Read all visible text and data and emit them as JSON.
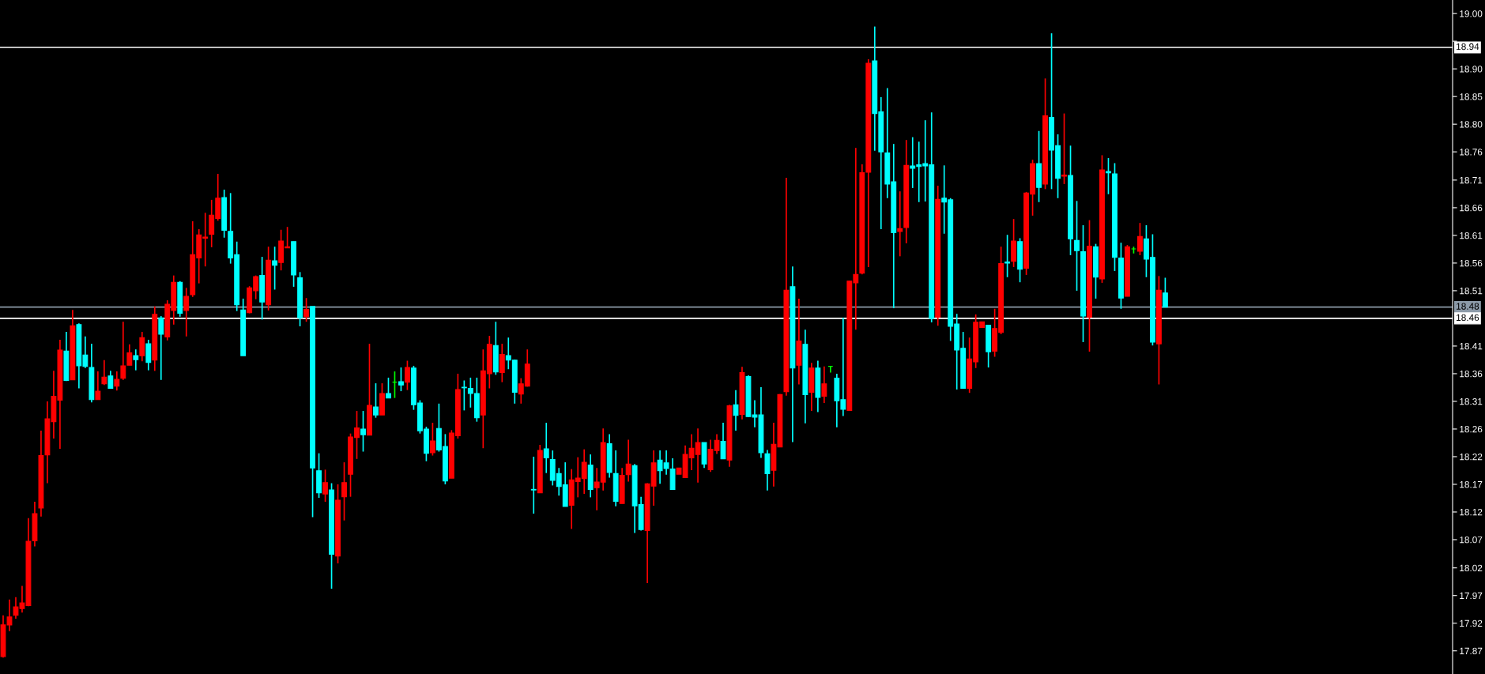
{
  "chart_data": {
    "type": "candlestick",
    "categories": [
      null,
      null,
      null,
      null,
      null,
      null,
      null,
      null,
      null,
      null,
      null,
      null,
      null,
      null,
      null,
      null,
      null,
      null,
      null,
      null,
      null,
      null,
      null,
      null,
      null,
      null,
      null,
      null,
      null,
      null,
      null,
      null,
      null,
      null,
      null,
      null,
      null,
      null,
      null,
      null,
      null,
      null,
      null,
      null,
      null,
      null,
      null,
      null,
      null,
      null,
      null,
      null,
      null,
      null,
      null,
      null,
      null,
      null,
      null,
      null,
      null,
      null,
      null,
      null,
      null,
      null,
      null,
      null,
      null,
      null,
      null,
      null,
      null,
      null,
      null,
      null,
      null,
      null,
      null,
      null,
      null,
      null,
      null,
      null,
      null,
      null,
      null,
      null,
      null,
      null,
      null,
      null,
      null,
      null,
      null,
      null,
      null,
      null,
      null,
      null,
      null,
      null,
      null,
      null,
      null,
      null,
      null,
      null,
      null,
      null,
      null,
      null,
      null,
      null,
      null,
      null,
      null,
      null,
      null,
      null,
      null,
      null,
      null,
      null,
      null,
      null,
      null,
      null,
      null,
      null,
      null,
      null,
      null,
      null,
      null,
      null,
      null,
      null,
      null,
      null,
      null,
      null,
      null,
      null,
      null,
      null,
      null,
      null,
      null,
      null,
      null,
      null,
      null,
      null,
      null,
      null,
      null,
      null,
      null,
      null,
      null,
      null,
      null,
      null,
      null,
      null,
      null,
      null,
      null,
      null,
      null,
      null,
      null,
      null,
      null,
      null,
      null,
      null,
      null,
      null,
      null,
      null,
      null,
      null,
      null,
      null,
      null,
      null,
      null,
      null,
      null,
      null,
      null,
      null,
      null,
      null,
      null,
      null,
      null,
      null,
      null,
      null,
      null,
      null,
      null,
      null,
      null,
      null,
      null,
      null,
      null,
      null,
      null,
      null,
      null,
      null,
      null,
      null,
      null,
      null,
      null,
      null,
      null,
      null,
      null,
      null,
      null,
      null,
      null,
      null
    ],
    "ohlc": [
      [
        17.861,
        17.934,
        17.859,
        17.917
      ],
      [
        17.917,
        17.962,
        17.906,
        17.931
      ],
      [
        17.934,
        17.966,
        17.928,
        17.949
      ],
      [
        17.946,
        17.986,
        17.939,
        17.956
      ],
      [
        17.951,
        18.106,
        17.95,
        18.065
      ],
      [
        18.066,
        18.135,
        18.056,
        18.114
      ],
      [
        18.124,
        18.261,
        18.109,
        18.217
      ],
      [
        18.218,
        18.313,
        18.168,
        18.282
      ],
      [
        18.277,
        18.367,
        18.247,
        18.322
      ],
      [
        18.315,
        18.422,
        18.229,
        18.404
      ],
      [
        18.402,
        18.436,
        18.349,
        18.35
      ],
      [
        18.351,
        18.475,
        18.351,
        18.447
      ],
      [
        18.449,
        18.451,
        18.336,
        18.376
      ],
      [
        18.395,
        18.428,
        18.372,
        18.375
      ],
      [
        18.373,
        18.415,
        18.311,
        18.316
      ],
      [
        18.316,
        18.366,
        18.316,
        18.331
      ],
      [
        18.344,
        18.386,
        18.342,
        18.356
      ],
      [
        18.358,
        18.367,
        18.336,
        18.336
      ],
      [
        18.34,
        18.366,
        18.332,
        18.352
      ],
      [
        18.354,
        18.454,
        18.351,
        18.376
      ],
      [
        18.377,
        18.414,
        18.377,
        18.399
      ],
      [
        18.394,
        18.405,
        18.368,
        18.387
      ],
      [
        18.394,
        18.436,
        18.384,
        18.426
      ],
      [
        18.415,
        18.422,
        18.368,
        18.382
      ],
      [
        18.386,
        18.481,
        18.367,
        18.467
      ],
      [
        18.461,
        18.464,
        18.351,
        18.432
      ],
      [
        18.427,
        18.492,
        18.421,
        18.485
      ],
      [
        18.474,
        18.536,
        18.449,
        18.524
      ],
      [
        18.524,
        18.526,
        18.463,
        18.469
      ],
      [
        18.474,
        18.514,
        18.428,
        18.499
      ],
      [
        18.502,
        18.632,
        18.498,
        18.573
      ],
      [
        18.567,
        18.618,
        18.522,
        18.608
      ],
      [
        18.602,
        18.647,
        18.552,
        18.604
      ],
      [
        18.609,
        18.67,
        18.586,
        18.643
      ],
      [
        18.637,
        18.716,
        18.633,
        18.673
      ],
      [
        18.674,
        18.688,
        18.603,
        18.616
      ],
      [
        18.614,
        18.682,
        18.557,
        18.567
      ],
      [
        18.573,
        18.596,
        18.473,
        18.484
      ],
      [
        18.475,
        18.495,
        18.394,
        18.394
      ],
      [
        18.47,
        18.517,
        18.469,
        18.514
      ],
      [
        18.509,
        18.536,
        18.494,
        18.534
      ],
      [
        18.536,
        18.569,
        18.458,
        18.489
      ],
      [
        18.484,
        18.587,
        18.474,
        18.563
      ],
      [
        18.562,
        18.587,
        18.511,
        18.554
      ],
      [
        18.559,
        18.617,
        18.545,
        18.597
      ],
      [
        18.585,
        18.622,
        18.585,
        18.587
      ],
      [
        18.596,
        18.596,
        18.516,
        18.537
      ],
      [
        18.532,
        18.542,
        18.446,
        18.461
      ],
      [
        18.463,
        18.496,
        18.454,
        18.476
      ],
      [
        18.481,
        18.481,
        18.108,
        18.195
      ],
      [
        18.19,
        18.221,
        18.142,
        18.151
      ],
      [
        18.149,
        18.192,
        18.135,
        18.169
      ],
      [
        18.156,
        18.168,
        17.981,
        18.042
      ],
      [
        18.039,
        18.166,
        18.026,
        18.138
      ],
      [
        18.144,
        18.205,
        18.102,
        18.169
      ],
      [
        18.184,
        18.256,
        18.144,
        18.25
      ],
      [
        18.249,
        18.296,
        18.211,
        18.266
      ],
      [
        18.264,
        18.296,
        18.224,
        18.254
      ],
      [
        18.253,
        18.415,
        18.253,
        18.306
      ],
      [
        18.303,
        18.345,
        18.284,
        18.289
      ],
      [
        18.289,
        18.345,
        18.289,
        18.327
      ],
      [
        18.327,
        18.355,
        18.319,
        18.319
      ],
      [
        18.347,
        18.366,
        18.319,
        18.347
      ],
      [
        18.348,
        18.373,
        18.331,
        18.342
      ],
      [
        18.347,
        18.385,
        18.333,
        18.373
      ],
      [
        18.372,
        18.376,
        18.298,
        18.307
      ],
      [
        18.31,
        18.315,
        18.256,
        18.261
      ],
      [
        18.264,
        18.268,
        18.207,
        18.221
      ],
      [
        18.222,
        18.275,
        18.217,
        18.243
      ],
      [
        18.265,
        18.309,
        18.224,
        18.227
      ],
      [
        18.233,
        18.255,
        18.166,
        18.172
      ],
      [
        18.177,
        18.262,
        18.177,
        18.257
      ],
      [
        18.252,
        18.362,
        18.247,
        18.334
      ],
      [
        18.338,
        18.35,
        18.297,
        18.337
      ],
      [
        18.336,
        18.355,
        18.302,
        18.327
      ],
      [
        18.327,
        18.355,
        18.277,
        18.284
      ],
      [
        18.289,
        18.405,
        18.23,
        18.367
      ],
      [
        18.362,
        18.429,
        18.336,
        18.414
      ],
      [
        18.412,
        18.454,
        18.36,
        18.365
      ],
      [
        18.364,
        18.415,
        18.347,
        18.396
      ],
      [
        18.394,
        18.426,
        18.37,
        18.386
      ],
      [
        18.386,
        18.387,
        18.309,
        18.329
      ],
      [
        18.326,
        18.354,
        18.309,
        18.344
      ],
      [
        18.34,
        18.405,
        18.339,
        18.379
      ],
      [
        18.157,
        18.215,
        18.114,
        18.156
      ],
      [
        18.151,
        18.236,
        18.151,
        18.226
      ],
      [
        18.229,
        18.275,
        18.186,
        18.213
      ],
      [
        18.21,
        18.226,
        18.164,
        18.173
      ],
      [
        18.185,
        18.195,
        18.146,
        18.162
      ],
      [
        18.165,
        18.205,
        18.127,
        18.127
      ],
      [
        18.129,
        18.193,
        18.087,
        18.174
      ],
      [
        18.171,
        18.214,
        18.143,
        18.177
      ],
      [
        18.176,
        18.228,
        18.149,
        18.205
      ],
      [
        18.2,
        18.219,
        18.143,
        18.157
      ],
      [
        18.16,
        18.195,
        18.12,
        18.17
      ],
      [
        18.17,
        18.265,
        18.155,
        18.24
      ],
      [
        18.238,
        18.255,
        18.178,
        18.187
      ],
      [
        18.185,
        18.226,
        18.127,
        18.136
      ],
      [
        18.132,
        18.195,
        18.132,
        18.182
      ],
      [
        18.183,
        18.245,
        18.171,
        18.202
      ],
      [
        18.199,
        18.202,
        18.08,
        18.128
      ],
      [
        18.13,
        18.144,
        18.084,
        18.086
      ],
      [
        18.084,
        18.168,
        17.991,
        18.167
      ],
      [
        18.163,
        18.226,
        18.128,
        18.204
      ],
      [
        18.209,
        18.226,
        18.167,
        18.19
      ],
      [
        18.204,
        18.226,
        18.183,
        18.194
      ],
      [
        18.193,
        18.212,
        18.156,
        18.157
      ],
      [
        18.184,
        18.195,
        18.184,
        18.195
      ],
      [
        18.178,
        18.235,
        18.178,
        18.219
      ],
      [
        18.213,
        18.255,
        18.191,
        18.23
      ],
      [
        18.219,
        18.265,
        18.169,
        18.24
      ],
      [
        18.24,
        18.24,
        18.195,
        18.202
      ],
      [
        18.192,
        18.245,
        18.188,
        18.228
      ],
      [
        18.226,
        18.255,
        18.22,
        18.244
      ],
      [
        18.242,
        18.275,
        18.211,
        18.211
      ],
      [
        18.209,
        18.307,
        18.197,
        18.305
      ],
      [
        18.307,
        18.333,
        18.261,
        18.288
      ],
      [
        18.29,
        18.374,
        18.281,
        18.364
      ],
      [
        18.357,
        18.359,
        18.285,
        18.286
      ],
      [
        18.289,
        18.315,
        18.267,
        18.285
      ],
      [
        18.289,
        18.338,
        18.213,
        18.222
      ],
      [
        18.22,
        18.227,
        18.155,
        18.185
      ],
      [
        18.191,
        18.275,
        18.162,
        18.237
      ],
      [
        18.232,
        18.326,
        18.232,
        18.325
      ],
      [
        18.33,
        18.709,
        18.323,
        18.51
      ],
      [
        18.516,
        18.552,
        18.241,
        18.372
      ],
      [
        18.377,
        18.495,
        18.343,
        18.42
      ],
      [
        18.414,
        18.44,
        18.274,
        18.325
      ],
      [
        18.329,
        18.381,
        18.296,
        18.372
      ],
      [
        18.372,
        18.385,
        18.294,
        18.32
      ],
      [
        18.322,
        18.375,
        18.31,
        18.344
      ],
      [
        18.375,
        18.375,
        18.364,
        18.375
      ],
      [
        18.354,
        18.362,
        18.267,
        18.314
      ],
      [
        18.316,
        18.461,
        18.287,
        18.299
      ],
      [
        18.297,
        18.526,
        18.297,
        18.526
      ],
      [
        18.523,
        18.762,
        18.44,
        18.538
      ],
      [
        18.54,
        18.733,
        18.538,
        18.718
      ],
      [
        18.719,
        18.919,
        18.551,
        18.912
      ],
      [
        18.916,
        18.977,
        18.757,
        18.823
      ],
      [
        18.826,
        18.852,
        18.618,
        18.755
      ],
      [
        18.753,
        18.868,
        18.673,
        18.698
      ],
      [
        18.702,
        18.769,
        18.478,
        18.612
      ],
      [
        18.614,
        18.685,
        18.57,
        18.619
      ],
      [
        18.621,
        18.776,
        18.593,
        18.731
      ],
      [
        18.73,
        18.781,
        18.691,
        18.726
      ],
      [
        18.732,
        18.773,
        18.666,
        18.729
      ],
      [
        18.734,
        18.811,
        18.667,
        18.73
      ],
      [
        18.732,
        18.825,
        18.453,
        18.46
      ],
      [
        18.462,
        18.695,
        18.447,
        18.671
      ],
      [
        18.673,
        18.731,
        18.61,
        18.666
      ],
      [
        18.67,
        18.673,
        18.42,
        18.446
      ],
      [
        18.45,
        18.468,
        18.334,
        18.404
      ],
      [
        18.407,
        18.436,
        18.336,
        18.336
      ],
      [
        18.336,
        18.426,
        18.328,
        18.388
      ],
      [
        18.383,
        18.467,
        18.372,
        18.453
      ],
      [
        18.444,
        18.454,
        18.444,
        18.454
      ],
      [
        18.448,
        18.448,
        18.373,
        18.401
      ],
      [
        18.402,
        18.477,
        18.392,
        18.442
      ],
      [
        18.435,
        18.587,
        18.432,
        18.557
      ],
      [
        18.56,
        18.608,
        18.533,
        18.558
      ],
      [
        18.561,
        18.636,
        18.551,
        18.597
      ],
      [
        18.596,
        18.602,
        18.524,
        18.547
      ],
      [
        18.549,
        18.684,
        18.537,
        18.682
      ],
      [
        18.68,
        18.741,
        18.642,
        18.734
      ],
      [
        18.734,
        18.792,
        18.666,
        18.692
      ],
      [
        18.698,
        18.885,
        18.689,
        18.819
      ],
      [
        18.816,
        18.965,
        18.689,
        18.758
      ],
      [
        18.766,
        18.786,
        18.673,
        18.708
      ],
      [
        18.712,
        18.823,
        18.698,
        18.714
      ],
      [
        18.713,
        18.766,
        18.572,
        18.601
      ],
      [
        18.598,
        18.668,
        18.509,
        18.58
      ],
      [
        18.578,
        18.625,
        18.418,
        18.464
      ],
      [
        18.462,
        18.634,
        18.401,
        18.588
      ],
      [
        18.587,
        18.592,
        18.495,
        18.533
      ],
      [
        18.53,
        18.749,
        18.523,
        18.723
      ],
      [
        18.72,
        18.744,
        18.68,
        18.718
      ],
      [
        18.716,
        18.735,
        18.544,
        18.568
      ],
      [
        18.567,
        18.594,
        18.477,
        18.496
      ],
      [
        18.499,
        18.59,
        18.499,
        18.587
      ],
      [
        18.583,
        18.587,
        18.575,
        18.583
      ],
      [
        18.579,
        18.629,
        18.572,
        18.605
      ],
      [
        18.601,
        18.625,
        18.533,
        18.565
      ],
      [
        18.568,
        18.609,
        18.412,
        18.418
      ],
      [
        18.415,
        18.535,
        18.343,
        18.51
      ],
      [
        18.505,
        18.532,
        18.48,
        18.48
      ],
      null,
      null,
      null,
      null,
      null,
      null,
      null,
      null,
      null,
      null,
      null,
      null,
      null,
      null,
      null,
      null,
      null,
      null,
      null,
      null,
      null,
      null,
      null,
      null,
      null,
      null,
      null,
      null,
      null,
      null,
      null,
      null,
      null,
      null,
      null,
      null,
      null,
      null,
      null,
      null,
      null,
      null,
      null,
      null,
      null
    ],
    "colors": [
      "#ff0000",
      "#ff0000",
      "#ff0000",
      "#ff0000",
      "#ff0000",
      "#ff0000",
      "#ff0000",
      "#ff0000",
      "#ff0000",
      "#ff0000",
      "#00ffff",
      "#ff0000",
      "#00ffff",
      "#00ffff",
      "#00ffff",
      "#ff0000",
      "#ff0000",
      "#00ffff",
      "#ff0000",
      "#ff0000",
      "#ff0000",
      "#00ffff",
      "#ff0000",
      "#00ffff",
      "#ff0000",
      "#00ffff",
      "#ff0000",
      "#ff0000",
      "#00ffff",
      "#ff0000",
      "#ff0000",
      "#ff0000",
      "#ff0000",
      "#ff0000",
      "#ff0000",
      "#00ffff",
      "#00ffff",
      "#00ffff",
      "#00ffff",
      "#ff0000",
      "#ff0000",
      "#00ffff",
      "#ff0000",
      "#00ffff",
      "#ff0000",
      "#ff0000",
      "#00ffff",
      "#00ffff",
      "#ff0000",
      "#00ffff",
      "#00ffff",
      "#ff0000",
      "#00ffff",
      "#ff0000",
      "#ff0000",
      "#ff0000",
      "#ff0000",
      "#00ffff",
      "#ff0000",
      "#00ffff",
      "#ff0000",
      "#00ffff",
      "#00ff00",
      "#00ffff",
      "#ff0000",
      "#00ffff",
      "#00ffff",
      "#00ffff",
      "#ff0000",
      "#00ffff",
      "#00ffff",
      "#ff0000",
      "#ff0000",
      "#00ffff",
      "#00ffff",
      "#00ffff",
      "#ff0000",
      "#ff0000",
      "#00ffff",
      "#ff0000",
      "#00ffff",
      "#00ffff",
      "#ff0000",
      "#ff0000",
      "#00ffff",
      "#ff0000",
      "#00ffff",
      "#00ffff",
      "#00ffff",
      "#00ffff",
      "#ff0000",
      "#ff0000",
      "#ff0000",
      "#00ffff",
      "#ff0000",
      "#ff0000",
      "#00ffff",
      "#00ffff",
      "#ff0000",
      "#ff0000",
      "#00ffff",
      "#00ffff",
      "#ff0000",
      "#ff0000",
      "#00ffff",
      "#00ffff",
      "#00ffff",
      "#ff0000",
      "#ff0000",
      "#ff0000",
      "#ff0000",
      "#00ffff",
      "#ff0000",
      "#ff0000",
      "#00ffff",
      "#ff0000",
      "#00ffff",
      "#ff0000",
      "#00ffff",
      "#00ffff",
      "#00ffff",
      "#00ffff",
      "#ff0000",
      "#ff0000",
      "#ff0000",
      "#00ffff",
      "#ff0000",
      "#00ffff",
      "#ff0000",
      "#00ffff",
      "#ff0000",
      "#00ff00",
      "#00ffff",
      "#00ffff",
      "#ff0000",
      "#ff0000",
      "#ff0000",
      "#ff0000",
      "#00ffff",
      "#00ffff",
      "#00ffff",
      "#00ffff",
      "#ff0000",
      "#ff0000",
      "#00ffff",
      "#00ffff",
      "#00ffff",
      "#00ffff",
      "#ff0000",
      "#00ffff",
      "#00ffff",
      "#00ffff",
      "#00ffff",
      "#ff0000",
      "#ff0000",
      "#ff0000",
      "#00ffff",
      "#ff0000",
      "#ff0000",
      "#00ffff",
      "#ff0000",
      "#00ffff",
      "#ff0000",
      "#ff0000",
      "#00ffff",
      "#ff0000",
      "#00ffff",
      "#00ffff",
      "#ff0000",
      "#00ffff",
      "#00ffff",
      "#00ffff",
      "#ff0000",
      "#00ffff",
      "#ff0000",
      "#00ffff",
      "#00ffff",
      "#00ffff",
      "#ff0000",
      "#00ff00",
      "#ff0000",
      "#00ffff",
      "#00ffff",
      "#ff0000",
      "#00ffff",
      null,
      null,
      null,
      null,
      null,
      null,
      null,
      null,
      null,
      null,
      null,
      null,
      null,
      null,
      null,
      null,
      null,
      null,
      null,
      null,
      null,
      null,
      null,
      null,
      null,
      null,
      null,
      null,
      null,
      null,
      null,
      null,
      null,
      null,
      null,
      null,
      null,
      null,
      null,
      null,
      null,
      null,
      null,
      null,
      null
    ],
    "ylim": [
      17.83,
      19.024
    ],
    "yticks": [
      {
        "value": 19.0,
        "label": "19.00"
      },
      {
        "value": 18.951,
        "label": null
      },
      {
        "value": 18.902,
        "label": "18.90"
      },
      {
        "value": 18.853,
        "label": "18.85"
      },
      {
        "value": 18.804,
        "label": "18.80"
      },
      {
        "value": 18.755,
        "label": "18.76"
      },
      {
        "value": 18.705,
        "label": "18.71"
      },
      {
        "value": 18.656,
        "label": "18.66"
      },
      {
        "value": 18.607,
        "label": "18.61"
      },
      {
        "value": 18.558,
        "label": "18.56"
      },
      {
        "value": 18.509,
        "label": "18.51"
      },
      {
        "value": 18.411,
        "label": "18.41"
      },
      {
        "value": 18.362,
        "label": "18.36"
      },
      {
        "value": 18.313,
        "label": "18.31"
      },
      {
        "value": 18.264,
        "label": "18.26"
      },
      {
        "value": 18.215,
        "label": "18.22"
      },
      {
        "value": 18.166,
        "label": "18.17"
      },
      {
        "value": 18.117,
        "label": "18.12"
      },
      {
        "value": 18.068,
        "label": "18.07"
      },
      {
        "value": 18.018,
        "label": "18.02"
      },
      {
        "value": 17.969,
        "label": "17.97"
      },
      {
        "value": 17.92,
        "label": "17.92"
      },
      {
        "value": 17.871,
        "label": "17.87"
      }
    ],
    "ref_lines": [
      {
        "axis": "y",
        "value": 18.94,
        "label": "18.94",
        "color": "#ffffff"
      },
      {
        "axis": "y",
        "value": 18.48,
        "label": "18.48",
        "color": "#8c9aa8"
      },
      {
        "axis": "y",
        "value": 18.46,
        "label": "18.46",
        "color": "#ffffff"
      }
    ],
    "tick_labels": "y"
  }
}
